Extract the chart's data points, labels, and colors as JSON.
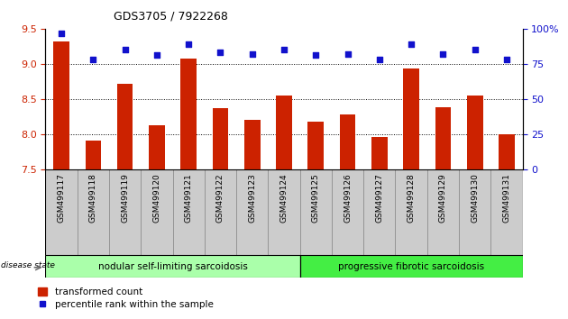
{
  "title": "GDS3705 / 7922268",
  "categories": [
    "GSM499117",
    "GSM499118",
    "GSM499119",
    "GSM499120",
    "GSM499121",
    "GSM499122",
    "GSM499123",
    "GSM499124",
    "GSM499125",
    "GSM499126",
    "GSM499127",
    "GSM499128",
    "GSM499129",
    "GSM499130",
    "GSM499131"
  ],
  "bar_values": [
    9.32,
    7.9,
    8.72,
    8.12,
    9.08,
    8.37,
    8.2,
    8.55,
    8.17,
    8.28,
    7.96,
    8.93,
    8.38,
    8.55,
    8.0
  ],
  "dot_values": [
    97,
    78,
    85,
    81,
    89,
    83,
    82,
    85,
    81,
    82,
    78,
    89,
    82,
    85,
    78
  ],
  "bar_color": "#cc2200",
  "dot_color": "#1111cc",
  "ylim_left": [
    7.5,
    9.5
  ],
  "ylim_right": [
    0,
    100
  ],
  "yticks_left": [
    7.5,
    8.0,
    8.5,
    9.0,
    9.5
  ],
  "yticks_right": [
    0,
    25,
    50,
    75,
    100
  ],
  "group1_label": "nodular self-limiting sarcoidosis",
  "group2_label": "progressive fibrotic sarcoidosis",
  "group1_count": 8,
  "group1_color": "#aaffaa",
  "group2_color": "#44ee44",
  "disease_state_label": "disease state",
  "legend_bar_label": "transformed count",
  "legend_dot_label": "percentile rank within the sample",
  "tick_label_color_left": "#cc2200",
  "tick_label_color_right": "#1111cc",
  "bar_width": 0.5,
  "xtick_bg": "#cccccc"
}
